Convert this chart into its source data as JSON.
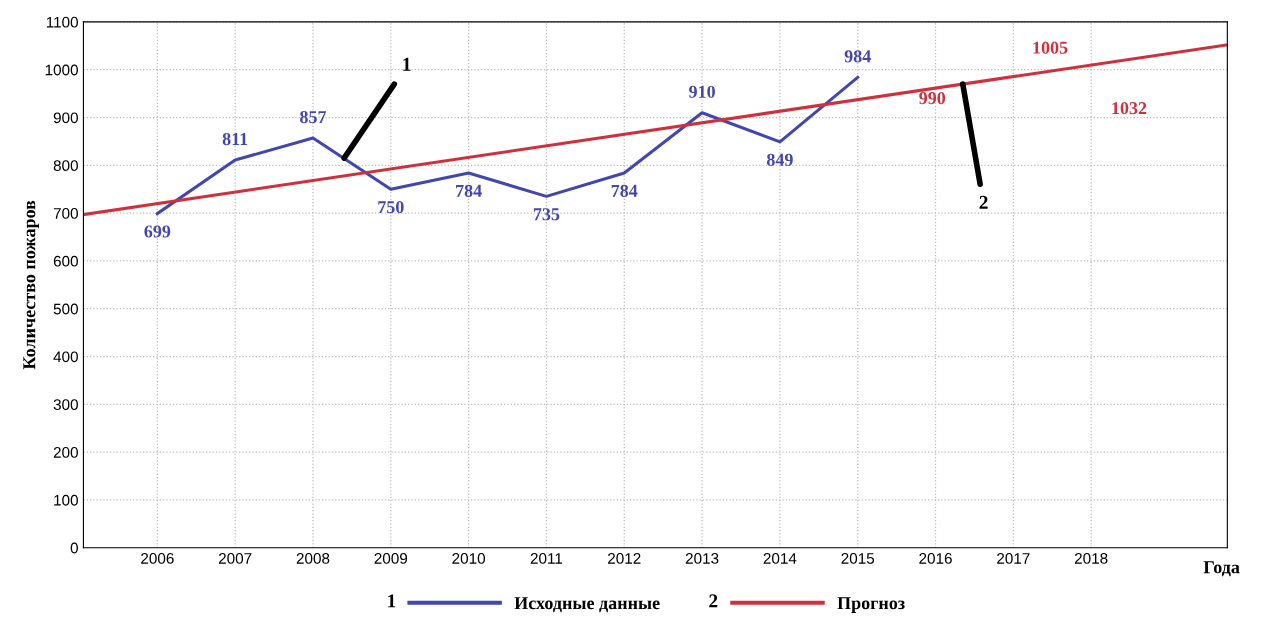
{
  "chart_data": {
    "type": "line",
    "xlabel": "Года",
    "ylabel": "Количество пожаров",
    "x": [
      2006,
      2007,
      2008,
      2009,
      2010,
      2011,
      2012,
      2013,
      2014,
      2015
    ],
    "series": [
      {
        "name": "Исходные данные",
        "color": "#4146b0",
        "values": [
          699,
          811,
          857,
          750,
          784,
          735,
          784,
          910,
          849,
          984
        ],
        "value_labels": [
          "699",
          "811",
          "857",
          "750",
          "784",
          "735",
          "784",
          "910",
          "849",
          "984"
        ]
      },
      {
        "name": "Прогноз",
        "color": "#d0303c",
        "x": [
          2005.05,
          2019.75
        ],
        "values": [
          697,
          1052
        ],
        "value_labels": [
          null,
          null
        ]
      }
    ],
    "annotations": [
      "990",
      "1005",
      "1032",
      {
        "text": "1",
        "x": 2008.4,
        "y": 815
      },
      {
        "text": "2",
        "x": 2016.35,
        "y": 970
      },
      "1",
      "2"
    ],
    "xlim": [
      2005.05,
      2019.75
    ],
    "xticks": [
      2006,
      2007,
      2008,
      2009,
      2010,
      2011,
      2012,
      2013,
      2014,
      2015,
      2016,
      2017,
      2018
    ],
    "ylim": [
      0,
      1100
    ],
    "yticks": [
      0,
      100,
      200,
      300,
      400,
      500,
      600,
      700,
      800,
      900,
      1000,
      1100
    ],
    "grid": true,
    "legend": "bottom",
    "marker": "none",
    "line_style": "solid"
  }
}
